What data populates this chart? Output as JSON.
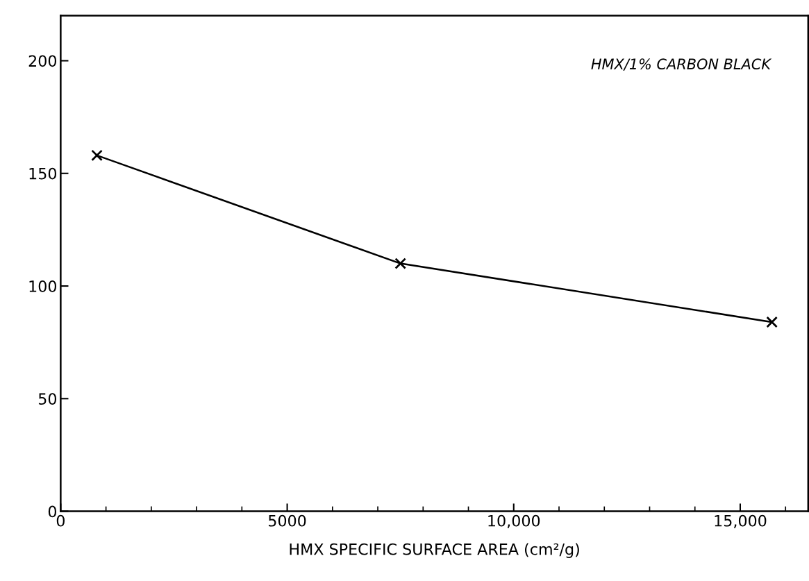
{
  "chart_data": {
    "type": "line",
    "xlabel": "HMX SPECIFIC SURFACE AREA (cm²/g)",
    "x": [
      800,
      7500,
      15700
    ],
    "series": [
      {
        "color": "#000000",
        "values": [
          158,
          110,
          84
        ]
      }
    ],
    "marker": "cross",
    "line_style": "solid",
    "xlim": [
      0,
      16500
    ],
    "xticks": [
      0,
      5000,
      {
        "value": 10000,
        "label": "10,000"
      },
      {
        "value": 15000,
        "label": "15,000"
      }
    ],
    "ylim": [
      0,
      220
    ],
    "yticks": [
      0,
      50,
      100,
      150,
      200
    ],
    "annotations": [
      "HMX/1% CARBON BLACK"
    ],
    "grid": false,
    "legend": false
  }
}
